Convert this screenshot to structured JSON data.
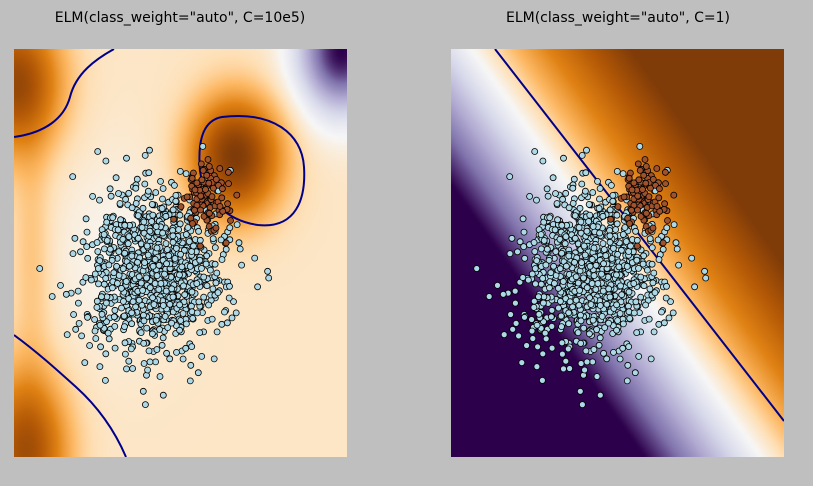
{
  "figure": {
    "background": "#bfbfbf"
  },
  "chart_data": [
    {
      "type": "scatter",
      "title": "ELM(class_weight=\"auto\", C=10e5)",
      "xlabel": "",
      "ylabel": "",
      "xlim": [
        -4.0,
        4.0
      ],
      "ylim": [
        -4.0,
        4.0
      ],
      "grid": false,
      "legend": "none",
      "axis_ticks": false,
      "background": "decision-function heatmap, colormap PuOr (orange = class 0 side, purple = class 1 side)",
      "decision_boundary_color": "#00008b",
      "series": [
        {
          "class": 0,
          "color": "#add8e6",
          "edge_color": "#000000",
          "n_points": 1000,
          "distribution": "gaussian",
          "center": [
            0.0,
            0.0
          ],
          "std": 1.0
        },
        {
          "class": 1,
          "color": "#a0522d",
          "edge_color": "#000000",
          "n_points": 100,
          "distribution": "gaussian",
          "center": [
            1.4,
            1.7
          ],
          "std": 0.4
        }
      ]
    },
    {
      "type": "scatter",
      "title": "ELM(class_weight=\"auto\", C=1)",
      "xlabel": "",
      "ylabel": "",
      "xlim": [
        -4.0,
        4.0
      ],
      "ylim": [
        -4.0,
        4.0
      ],
      "grid": false,
      "legend": "none",
      "axis_ticks": false,
      "background": "decision-function heatmap, colormap PuOr (orange = class 1 side, purple = class 0 side)",
      "decision_boundary_color": "#00008b",
      "series": [
        {
          "class": 0,
          "color": "#add8e6",
          "edge_color": "#000000",
          "n_points": 1000,
          "distribution": "gaussian",
          "center": [
            0.0,
            0.0
          ],
          "std": 1.0
        },
        {
          "class": 1,
          "color": "#a0522d",
          "edge_color": "#000000",
          "n_points": 100,
          "distribution": "gaussian",
          "center": [
            1.4,
            1.7
          ],
          "std": 0.4
        }
      ]
    }
  ]
}
